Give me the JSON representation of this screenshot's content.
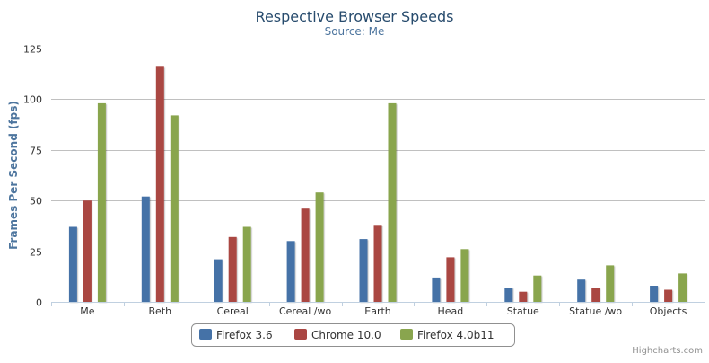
{
  "chart_data": {
    "type": "bar",
    "title": "Respective Browser Speeds",
    "subtitle": "Source: Me",
    "xlabel": "",
    "ylabel": "Frames Per Second (fps)",
    "ylim": [
      0,
      125
    ],
    "yticks": [
      0,
      25,
      50,
      75,
      100,
      125
    ],
    "grid": true,
    "legend_position": "bottom-center",
    "categories": [
      "Me",
      "Beth",
      "Cereal",
      "Cereal /wo",
      "Earth",
      "Head",
      "Statue",
      "Statue /wo",
      "Objects"
    ],
    "series": [
      {
        "name": "Firefox 3.6",
        "color": "#4572a7",
        "values": [
          37,
          52,
          21,
          30,
          31,
          12,
          7,
          11,
          8
        ]
      },
      {
        "name": "Chrome 10.0",
        "color": "#aa4643",
        "values": [
          50,
          116,
          32,
          46,
          38,
          22,
          5,
          7,
          6
        ]
      },
      {
        "name": "Firefox 4.0b11",
        "color": "#89a54e",
        "values": [
          98,
          92,
          37,
          54,
          98,
          26,
          13,
          18,
          14
        ]
      }
    ]
  },
  "credits": "Highcharts.com"
}
